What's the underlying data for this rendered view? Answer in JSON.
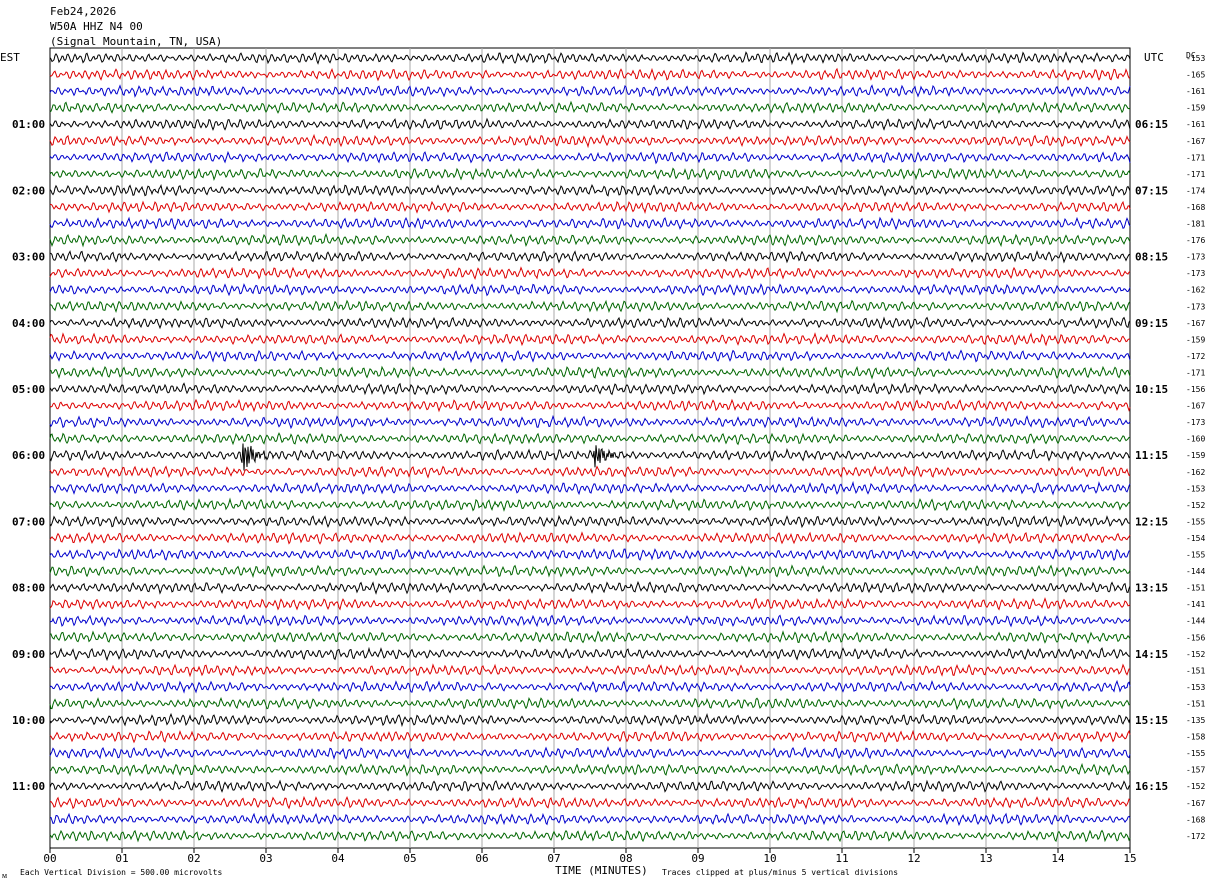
{
  "header": {
    "date": "Feb24,2026",
    "channel": "W50A HHZ N4 00",
    "location": "(Signal Mountain, TN, USA)"
  },
  "labels": {
    "left_timezone": "EST",
    "right_timezone": "UTC",
    "dc_label": "DC",
    "x_axis_title": "TIME (MINUTES)",
    "scale_note": "Each Vertical Division =  500.00 microvolts",
    "clip_note": "Traces clipped at plus/minus 5 vertical divisions",
    "corner_mark": "ᴍ"
  },
  "colors": {
    "trace_cycle": [
      "#000000",
      "#dd0000",
      "#0000cc",
      "#006600"
    ],
    "grid": "#aaaaaa",
    "frame": "#000000"
  },
  "chart_data": {
    "type": "line",
    "chart_kind": "helicorder",
    "x_axis": {
      "label": "TIME (MINUTES)",
      "ticks": [
        "00",
        "01",
        "02",
        "03",
        "04",
        "05",
        "06",
        "07",
        "08",
        "09",
        "10",
        "11",
        "12",
        "13",
        "14",
        "15"
      ],
      "range": [
        0,
        15
      ]
    },
    "rows_per_hour": 4,
    "trace_count": 48,
    "left_time_labels": [
      "01:00",
      "02:00",
      "03:00",
      "04:00",
      "05:00",
      "06:00",
      "07:00",
      "08:00",
      "09:00",
      "10:00",
      "11:00"
    ],
    "right_time_labels": [
      "06:15",
      "07:15",
      "08:15",
      "09:15",
      "10:15",
      "11:15",
      "12:15",
      "13:15",
      "14:15",
      "15:15",
      "16:15"
    ],
    "dc_offsets": [
      -153,
      -165,
      -161,
      -159,
      -161,
      -167,
      -171,
      -171,
      -174,
      -168,
      -181,
      -176,
      -173,
      -173,
      -162,
      -173,
      -167,
      -159,
      -172,
      -171,
      -156,
      -167,
      -173,
      -160,
      -159,
      -162,
      -153,
      -152,
      -155,
      -154,
      -155,
      -144,
      -151,
      -141,
      -144,
      -156,
      -152,
      -151,
      -153,
      -151,
      -135,
      -158,
      -155,
      -157,
      -152,
      -167,
      -168,
      -172
    ],
    "events": [
      {
        "trace": 24,
        "minute": 2.7,
        "amplitude": 2.2
      },
      {
        "trace": 24,
        "minute": 7.6,
        "amplitude": 1.5
      }
    ],
    "grid": true
  }
}
